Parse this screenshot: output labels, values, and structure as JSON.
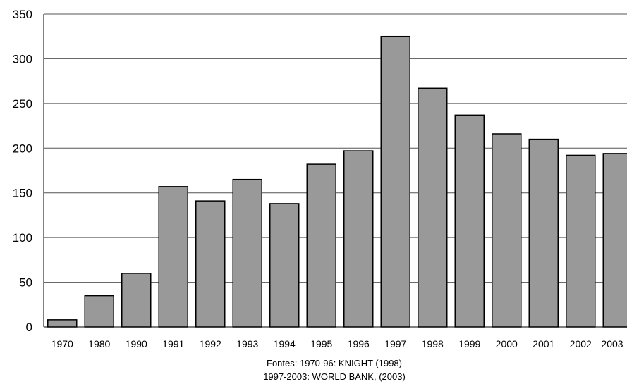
{
  "chart_data": {
    "type": "bar",
    "categories": [
      "1970",
      "1980",
      "1990",
      "1991",
      "1992",
      "1993",
      "1994",
      "1995",
      "1996",
      "1997",
      "1998",
      "1999",
      "2000",
      "2001",
      "2002",
      "2003"
    ],
    "values": [
      8,
      35,
      60,
      157,
      141,
      165,
      138,
      182,
      197,
      325,
      267,
      237,
      216,
      210,
      192,
      194
    ],
    "ylim": [
      0,
      350
    ],
    "yticks": [
      "0",
      "50",
      "100",
      "150",
      "200",
      "250",
      "300",
      "350"
    ],
    "grid": true,
    "bar_color": "#999999",
    "bar_edge_color": "#000000",
    "source_lines": [
      "Fontes: 1970-96: KNIGHT (1998)",
      "1997-2003: WORLD BANK, (2003)"
    ]
  }
}
